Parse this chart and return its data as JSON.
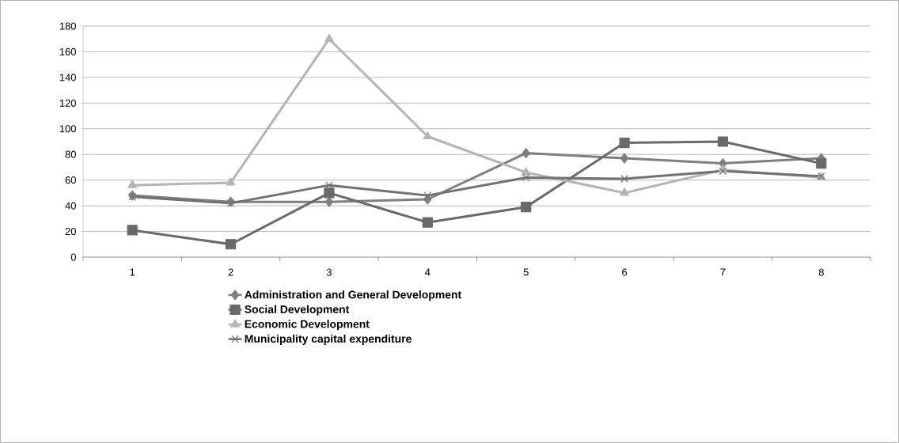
{
  "chart_data": {
    "type": "line",
    "categories": [
      "1",
      "2",
      "3",
      "4",
      "5",
      "6",
      "7",
      "8"
    ],
    "series": [
      {
        "name": "Administration and General Development",
        "color": "#7f7f7f",
        "marker": "diamond",
        "values": [
          48,
          43,
          43,
          45,
          81,
          77,
          73,
          77
        ]
      },
      {
        "name": "Social Development",
        "color": "#696969",
        "marker": "square",
        "values": [
          21,
          10,
          50,
          27,
          39,
          89,
          90,
          73
        ]
      },
      {
        "name": "Economic Development",
        "color": "#b4b4b4",
        "marker": "triangle",
        "values": [
          56,
          58,
          170,
          94,
          66,
          50,
          68,
          62
        ]
      },
      {
        "name": "Municipality capital expenditure",
        "color": "#717171",
        "marker": "cross",
        "values": [
          47,
          42,
          56,
          48,
          62,
          61,
          67,
          63
        ]
      }
    ],
    "ylim": [
      0,
      180
    ],
    "yticks": [
      0,
      20,
      40,
      60,
      80,
      100,
      120,
      140,
      160,
      180
    ],
    "grid": "y",
    "legend": "bottom"
  }
}
